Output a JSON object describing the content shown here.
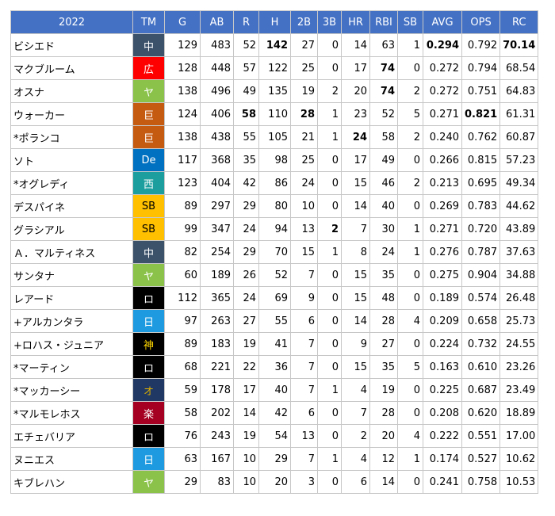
{
  "table": {
    "year_label": "2022",
    "columns": [
      "TM",
      "G",
      "AB",
      "R",
      "H",
      "2B",
      "3B",
      "HR",
      "RBI",
      "SB",
      "AVG",
      "OPS",
      "RC"
    ],
    "team_colors": {
      "中": {
        "bg": "#3c526b",
        "fg": "#ffffff"
      },
      "広": {
        "bg": "#ff0000",
        "fg": "#ffffff"
      },
      "ヤ": {
        "bg": "#8bc34a",
        "fg": "#ffffff"
      },
      "巨": {
        "bg": "#c55a11",
        "fg": "#ffffff"
      },
      "De": {
        "bg": "#0070c0",
        "fg": "#ffffff"
      },
      "西": {
        "bg": "#1d9e9e",
        "fg": "#ffffff"
      },
      "SB": {
        "bg": "#ffc000",
        "fg": "#000000"
      },
      "ロ": {
        "bg": "#000000",
        "fg": "#ffffff"
      },
      "日": {
        "bg": "#1e9be0",
        "fg": "#ffffff"
      },
      "神": {
        "bg": "#000000",
        "fg": "#ffd700"
      },
      "オ": {
        "bg": "#1f3864",
        "fg": "#e0b000"
      },
      "楽": {
        "bg": "#a50021",
        "fg": "#ffffff"
      }
    },
    "rows": [
      {
        "name": "ビシエド",
        "tm": "中",
        "g": "129",
        "ab": "483",
        "r": "52",
        "h": "142",
        "b2": "27",
        "b3": "0",
        "hr": "14",
        "rbi": "63",
        "sb": "1",
        "avg": "0.294",
        "ops": "0.792",
        "rc": "70.14",
        "bold": [
          "h",
          "avg",
          "rc"
        ]
      },
      {
        "name": "マクブルーム",
        "tm": "広",
        "g": "128",
        "ab": "448",
        "r": "57",
        "h": "122",
        "b2": "25",
        "b3": "0",
        "hr": "17",
        "rbi": "74",
        "sb": "0",
        "avg": "0.272",
        "ops": "0.794",
        "rc": "68.54",
        "bold": [
          "rbi"
        ]
      },
      {
        "name": "オスナ",
        "tm": "ヤ",
        "g": "138",
        "ab": "496",
        "r": "49",
        "h": "135",
        "b2": "19",
        "b3": "2",
        "hr": "20",
        "rbi": "74",
        "sb": "2",
        "avg": "0.272",
        "ops": "0.751",
        "rc": "64.83",
        "bold": [
          "rbi"
        ]
      },
      {
        "name": "ウォーカー",
        "tm": "巨",
        "g": "124",
        "ab": "406",
        "r": "58",
        "h": "110",
        "b2": "28",
        "b3": "1",
        "hr": "23",
        "rbi": "52",
        "sb": "5",
        "avg": "0.271",
        "ops": "0.821",
        "rc": "61.31",
        "bold": [
          "r",
          "b2",
          "ops"
        ]
      },
      {
        "name": "*ポランコ",
        "tm": "巨",
        "g": "138",
        "ab": "438",
        "r": "55",
        "h": "105",
        "b2": "21",
        "b3": "1",
        "hr": "24",
        "rbi": "58",
        "sb": "2",
        "avg": "0.240",
        "ops": "0.762",
        "rc": "60.87",
        "bold": [
          "hr"
        ]
      },
      {
        "name": "ソト",
        "tm": "De",
        "g": "117",
        "ab": "368",
        "r": "35",
        "h": "98",
        "b2": "25",
        "b3": "0",
        "hr": "17",
        "rbi": "49",
        "sb": "0",
        "avg": "0.266",
        "ops": "0.815",
        "rc": "57.23",
        "bold": []
      },
      {
        "name": "*オグレディ",
        "tm": "西",
        "g": "123",
        "ab": "404",
        "r": "42",
        "h": "86",
        "b2": "24",
        "b3": "0",
        "hr": "15",
        "rbi": "46",
        "sb": "2",
        "avg": "0.213",
        "ops": "0.695",
        "rc": "49.34",
        "bold": []
      },
      {
        "name": "デスパイネ",
        "tm": "SB",
        "g": "89",
        "ab": "297",
        "r": "29",
        "h": "80",
        "b2": "10",
        "b3": "0",
        "hr": "14",
        "rbi": "40",
        "sb": "0",
        "avg": "0.269",
        "ops": "0.783",
        "rc": "44.62",
        "bold": []
      },
      {
        "name": "グラシアル",
        "tm": "SB",
        "g": "99",
        "ab": "347",
        "r": "24",
        "h": "94",
        "b2": "13",
        "b3": "2",
        "hr": "7",
        "rbi": "30",
        "sb": "1",
        "avg": "0.271",
        "ops": "0.720",
        "rc": "43.89",
        "bold": [
          "b3"
        ]
      },
      {
        "name": "Ａ．マルティネス",
        "tm": "中",
        "g": "82",
        "ab": "254",
        "r": "29",
        "h": "70",
        "b2": "15",
        "b3": "1",
        "hr": "8",
        "rbi": "24",
        "sb": "1",
        "avg": "0.276",
        "ops": "0.787",
        "rc": "37.63",
        "bold": []
      },
      {
        "name": "サンタナ",
        "tm": "ヤ",
        "g": "60",
        "ab": "189",
        "r": "26",
        "h": "52",
        "b2": "7",
        "b3": "0",
        "hr": "15",
        "rbi": "35",
        "sb": "0",
        "avg": "0.275",
        "ops": "0.904",
        "rc": "34.88",
        "bold": []
      },
      {
        "name": "レアード",
        "tm": "ロ",
        "g": "112",
        "ab": "365",
        "r": "24",
        "h": "69",
        "b2": "9",
        "b3": "0",
        "hr": "15",
        "rbi": "48",
        "sb": "0",
        "avg": "0.189",
        "ops": "0.574",
        "rc": "26.48",
        "bold": []
      },
      {
        "name": "+アルカンタラ",
        "tm": "日",
        "g": "97",
        "ab": "263",
        "r": "27",
        "h": "55",
        "b2": "6",
        "b3": "0",
        "hr": "14",
        "rbi": "28",
        "sb": "4",
        "avg": "0.209",
        "ops": "0.658",
        "rc": "25.73",
        "bold": []
      },
      {
        "name": "+ロハス・ジュニア",
        "tm": "神",
        "g": "89",
        "ab": "183",
        "r": "19",
        "h": "41",
        "b2": "7",
        "b3": "0",
        "hr": "9",
        "rbi": "27",
        "sb": "0",
        "avg": "0.224",
        "ops": "0.732",
        "rc": "24.55",
        "bold": []
      },
      {
        "name": "*マーティン",
        "tm": "ロ",
        "g": "68",
        "ab": "221",
        "r": "22",
        "h": "36",
        "b2": "7",
        "b3": "0",
        "hr": "15",
        "rbi": "35",
        "sb": "5",
        "avg": "0.163",
        "ops": "0.610",
        "rc": "23.26",
        "bold": []
      },
      {
        "name": "*マッカーシー",
        "tm": "オ",
        "g": "59",
        "ab": "178",
        "r": "17",
        "h": "40",
        "b2": "7",
        "b3": "1",
        "hr": "4",
        "rbi": "19",
        "sb": "0",
        "avg": "0.225",
        "ops": "0.687",
        "rc": "23.49",
        "bold": []
      },
      {
        "name": "*マルモレホス",
        "tm": "楽",
        "g": "58",
        "ab": "202",
        "r": "14",
        "h": "42",
        "b2": "6",
        "b3": "0",
        "hr": "7",
        "rbi": "28",
        "sb": "0",
        "avg": "0.208",
        "ops": "0.620",
        "rc": "18.89",
        "bold": []
      },
      {
        "name": "エチェバリア",
        "tm": "ロ",
        "g": "76",
        "ab": "243",
        "r": "19",
        "h": "54",
        "b2": "13",
        "b3": "0",
        "hr": "2",
        "rbi": "20",
        "sb": "4",
        "avg": "0.222",
        "ops": "0.551",
        "rc": "17.00",
        "bold": []
      },
      {
        "name": "ヌニエス",
        "tm": "日",
        "g": "63",
        "ab": "167",
        "r": "10",
        "h": "29",
        "b2": "7",
        "b3": "1",
        "hr": "4",
        "rbi": "12",
        "sb": "1",
        "avg": "0.174",
        "ops": "0.527",
        "rc": "10.62",
        "bold": []
      },
      {
        "name": "キブレハン",
        "tm": "ヤ",
        "g": "29",
        "ab": "83",
        "r": "10",
        "h": "20",
        "b2": "3",
        "b3": "0",
        "hr": "6",
        "rbi": "14",
        "sb": "0",
        "avg": "0.241",
        "ops": "0.758",
        "rc": "10.53",
        "bold": []
      }
    ]
  }
}
